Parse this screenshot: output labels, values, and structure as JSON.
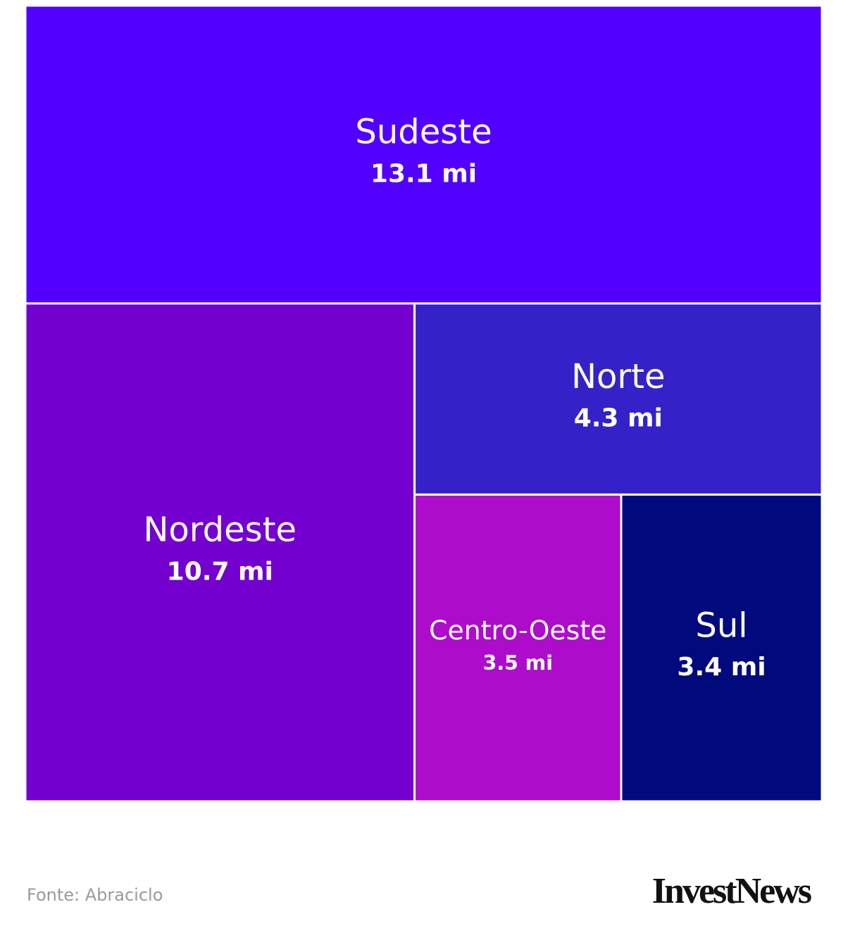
{
  "chart_data": {
    "type": "treemap",
    "categories": [
      "Sudeste",
      "Nordeste",
      "Norte",
      "Centro-Oeste",
      "Sul"
    ],
    "values": [
      13.1,
      10.7,
      4.3,
      3.5,
      3.4
    ],
    "value_labels": [
      "13.1 mi",
      "10.7 mi",
      "4.3 mi",
      "3.5 mi",
      "3.4 mi"
    ],
    "colors": [
      "#5200ff",
      "#7300cf",
      "#3422c8",
      "#ad0ccb",
      "#000a7c"
    ],
    "source": "Fonte: Abraciclo",
    "logo": "InvestNews"
  }
}
